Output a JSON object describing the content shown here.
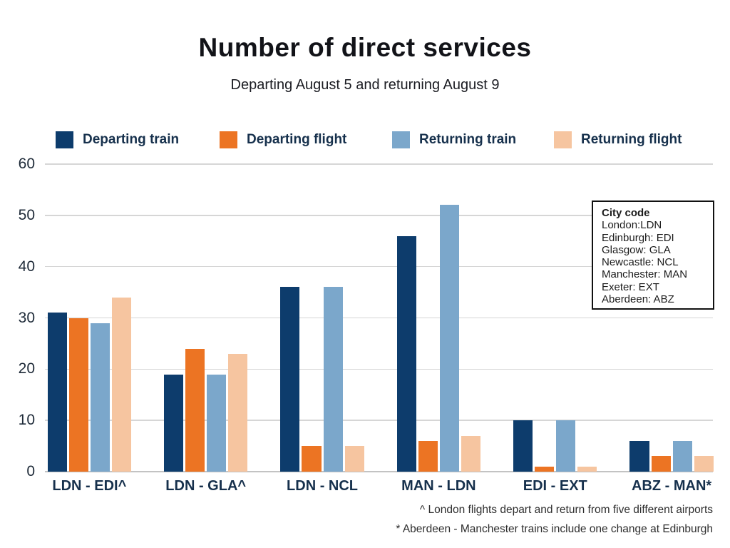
{
  "title": "Number of direct services",
  "subtitle": "Departing August 5 and returning August 9",
  "colors": {
    "departing_train": "#0d3c6c",
    "departing_flight": "#ec7423",
    "returning_train": "#7ba7cb",
    "returning_flight": "#f6c5a0",
    "label_navy": "#16304c"
  },
  "chart_data": {
    "type": "bar",
    "categories": [
      "LDN - EDI^",
      "LDN - GLA^",
      "LDN - NCL",
      "MAN - LDN",
      "EDI - EXT",
      "ABZ - MAN*"
    ],
    "series": [
      {
        "name": "Departing train",
        "color": "#0d3c6c",
        "values": [
          31,
          19,
          36,
          46,
          10,
          6
        ]
      },
      {
        "name": "Departing flight",
        "color": "#ec7423",
        "values": [
          30,
          24,
          5,
          6,
          1,
          3
        ]
      },
      {
        "name": "Returning train",
        "color": "#7ba7cb",
        "values": [
          29,
          19,
          36,
          52,
          10,
          6
        ]
      },
      {
        "name": "Returning flight",
        "color": "#f6c5a0",
        "values": [
          34,
          23,
          5,
          7,
          1,
          3
        ]
      }
    ],
    "title": "Number of direct services",
    "subtitle": "Departing August 5 and returning August 9",
    "xlabel": "",
    "ylabel": "",
    "ylim": [
      0,
      60
    ],
    "yticks": [
      0,
      10,
      20,
      30,
      40,
      50,
      60
    ],
    "grid": true,
    "legend_position": "top"
  },
  "annotation_box": {
    "title": "City code",
    "lines": [
      "London:LDN",
      "Edinburgh: EDI",
      "Glasgow: GLA",
      "Newcastle: NCL",
      "Manchester: MAN",
      "Exeter: EXT",
      "Aberdeen: ABZ"
    ]
  },
  "footnotes": [
    "^ London flights depart and return from five different airports",
    "* Aberdeen - Manchester trains include one change at Edinburgh"
  ]
}
